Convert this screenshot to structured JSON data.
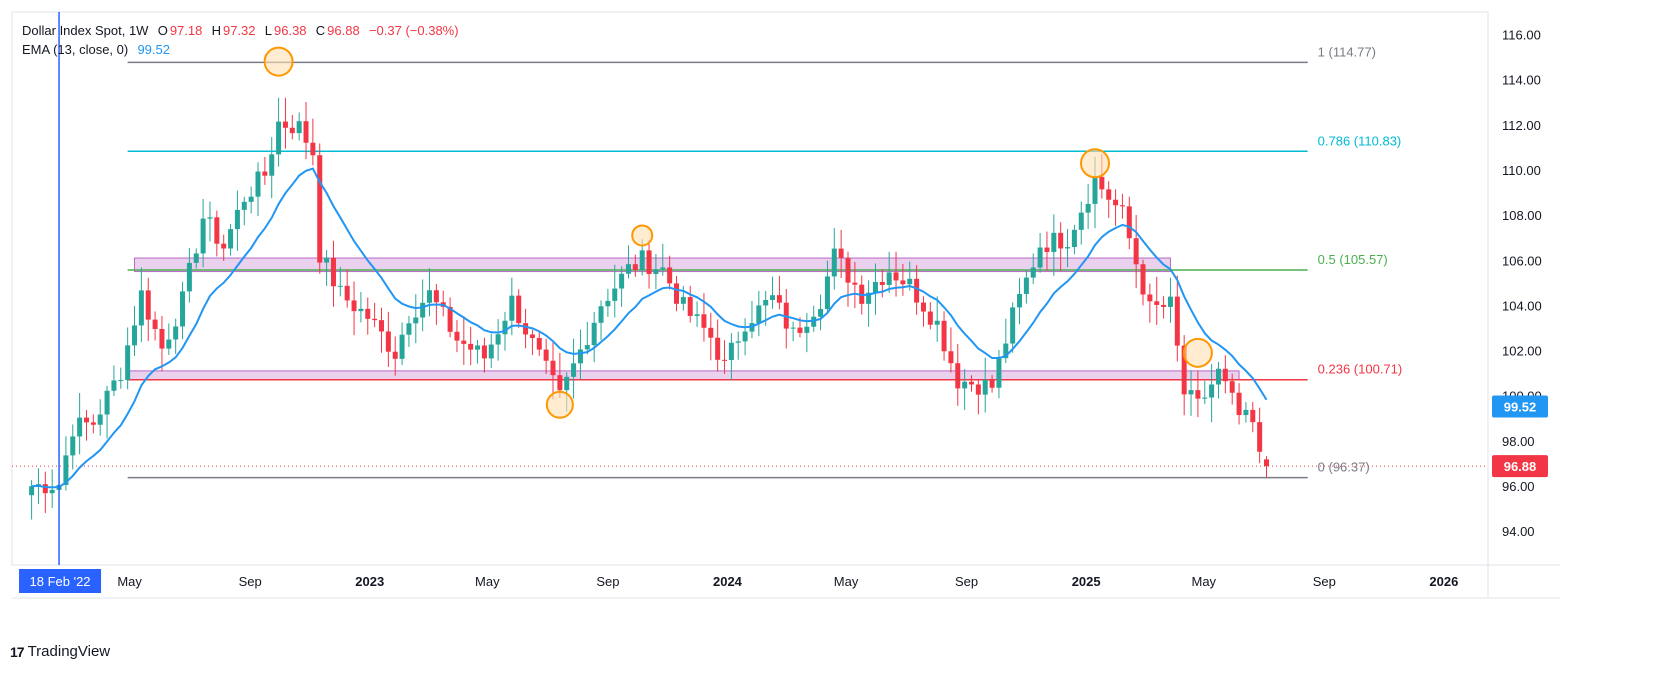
{
  "header": {
    "symbol": "Dollar Index Spot, 1W",
    "o_label": "O",
    "o_value": "97.18",
    "h_label": "H",
    "h_value": "97.32",
    "l_label": "L",
    "l_value": "96.38",
    "c_label": "C",
    "c_value": "96.88",
    "change": "−0.37 (−0.38%)",
    "ema_label": "EMA (13, close, 0)",
    "ema_value": "99.52"
  },
  "watermark": "TradingView",
  "colors": {
    "up": "#26a69a",
    "down": "#f23645",
    "ema": "#2196f3",
    "fib_1": "#787b86",
    "fib_786": "#00bcd4",
    "fib_05": "#4caf50",
    "fib_236": "#f23645",
    "fib_0": "#787b86",
    "zone_fill": "#e1bee7",
    "zone_stroke": "#ba68c8",
    "marker": "#ff9800",
    "marker_fill": "#ffe0b2",
    "last_price_bg": "#f23645",
    "ema_tag_bg": "#2196f3",
    "date_tag_bg": "#2962ff"
  },
  "chart_data": {
    "type": "candlestick",
    "title": "Dollar Index Spot, 1W",
    "ylim": [
      92.5,
      117
    ],
    "y_ticks": [
      "116.00",
      "114.00",
      "112.00",
      "110.00",
      "108.00",
      "106.00",
      "104.00",
      "102.00",
      "100.00",
      "98.00",
      "96.00",
      "94.00"
    ],
    "x_ticks": [
      {
        "label": "May",
        "date": "2022-05-01",
        "bold": false
      },
      {
        "label": "Sep",
        "date": "2022-09-01",
        "bold": false
      },
      {
        "label": "2023",
        "date": "2023-01-01",
        "bold": true
      },
      {
        "label": "May",
        "date": "2023-05-01",
        "bold": false
      },
      {
        "label": "Sep",
        "date": "2023-09-01",
        "bold": false
      },
      {
        "label": "2024",
        "date": "2024-01-01",
        "bold": true
      },
      {
        "label": "May",
        "date": "2024-05-01",
        "bold": false
      },
      {
        "label": "Sep",
        "date": "2024-09-01",
        "bold": false
      },
      {
        "label": "2025",
        "date": "2025-01-01",
        "bold": true
      },
      {
        "label": "May",
        "date": "2025-05-01",
        "bold": false
      },
      {
        "label": "Sep",
        "date": "2025-09-01",
        "bold": false
      },
      {
        "label": "2026",
        "date": "2026-01-01",
        "bold": true
      }
    ],
    "date_marker": {
      "label": "18 Feb '22",
      "date": "2022-02-18"
    },
    "fib_levels": [
      {
        "key": "fib_1",
        "label": "1 (114.77)",
        "value": 114.77
      },
      {
        "key": "fib_786",
        "label": "0.786 (110.83)",
        "value": 110.83
      },
      {
        "key": "fib_05",
        "label": "0.5 (105.57)",
        "value": 105.57
      },
      {
        "key": "fib_236",
        "label": "0.236 (100.71)",
        "value": 100.71
      },
      {
        "key": "fib_0",
        "label": "0 (96.37)",
        "value": 96.37
      }
    ],
    "fib_start_date": "2022-04-29",
    "fib_end_date": "2025-08-15",
    "zones": [
      {
        "start": "2022-05-06",
        "end": "2025-03-28",
        "top": 106.1,
        "bottom": 105.5
      },
      {
        "start": "2022-04-29",
        "end": "2025-06-06",
        "top": 101.1,
        "bottom": 100.7
      }
    ],
    "markers": [
      {
        "date": "2022-09-30",
        "value": 114.8,
        "size": "large"
      },
      {
        "date": "2023-10-06",
        "value": 107.1,
        "size": "small"
      },
      {
        "date": "2023-07-14",
        "value": 99.6,
        "size": "medium"
      },
      {
        "date": "2025-01-10",
        "value": 110.3,
        "size": "large"
      },
      {
        "date": "2025-04-25",
        "value": 101.9,
        "size": "large"
      }
    ],
    "last_price": {
      "label": "96.88",
      "value": 96.88
    },
    "ema_last": {
      "label": "99.52",
      "value": 99.52
    },
    "series_anchors": [
      {
        "date": "2022-01-21",
        "close": 96.0
      },
      {
        "date": "2022-02-18",
        "close": 96.1
      },
      {
        "date": "2022-03-04",
        "close": 98.6
      },
      {
        "date": "2022-03-25",
        "close": 98.8
      },
      {
        "date": "2022-04-22",
        "close": 101.1
      },
      {
        "date": "2022-05-13",
        "close": 104.5
      },
      {
        "date": "2022-06-03",
        "close": 102.1
      },
      {
        "date": "2022-06-24",
        "close": 104.2
      },
      {
        "date": "2022-07-15",
        "close": 107.9
      },
      {
        "date": "2022-08-05",
        "close": 106.6
      },
      {
        "date": "2022-08-26",
        "close": 108.8
      },
      {
        "date": "2022-09-16",
        "close": 109.8
      },
      {
        "date": "2022-09-30",
        "close": 112.1
      },
      {
        "date": "2022-10-21",
        "close": 111.9
      },
      {
        "date": "2022-11-04",
        "close": 110.8
      },
      {
        "date": "2022-11-11",
        "close": 106.3
      },
      {
        "date": "2022-12-02",
        "close": 104.5
      },
      {
        "date": "2022-12-30",
        "close": 103.5
      },
      {
        "date": "2023-01-27",
        "close": 101.9
      },
      {
        "date": "2023-02-10",
        "close": 103.6
      },
      {
        "date": "2023-03-03",
        "close": 104.5
      },
      {
        "date": "2023-03-31",
        "close": 102.5
      },
      {
        "date": "2023-04-28",
        "close": 101.7
      },
      {
        "date": "2023-05-26",
        "close": 104.2
      },
      {
        "date": "2023-06-16",
        "close": 102.3
      },
      {
        "date": "2023-07-14",
        "close": 99.9
      },
      {
        "date": "2023-08-04",
        "close": 102.0
      },
      {
        "date": "2023-08-25",
        "close": 104.1
      },
      {
        "date": "2023-09-22",
        "close": 105.6
      },
      {
        "date": "2023-10-06",
        "close": 106.0
      },
      {
        "date": "2023-10-27",
        "close": 105.6
      },
      {
        "date": "2023-11-17",
        "close": 103.9
      },
      {
        "date": "2023-12-15",
        "close": 102.6
      },
      {
        "date": "2023-12-29",
        "close": 101.3
      },
      {
        "date": "2024-01-19",
        "close": 103.3
      },
      {
        "date": "2024-02-16",
        "close": 104.3
      },
      {
        "date": "2024-03-08",
        "close": 102.7
      },
      {
        "date": "2024-04-05",
        "close": 104.3
      },
      {
        "date": "2024-04-19",
        "close": 106.2
      },
      {
        "date": "2024-05-17",
        "close": 104.5
      },
      {
        "date": "2024-06-14",
        "close": 105.6
      },
      {
        "date": "2024-07-05",
        "close": 104.9
      },
      {
        "date": "2024-08-02",
        "close": 103.2
      },
      {
        "date": "2024-08-23",
        "close": 100.7
      },
      {
        "date": "2024-09-27",
        "close": 100.4
      },
      {
        "date": "2024-10-18",
        "close": 103.5
      },
      {
        "date": "2024-11-15",
        "close": 106.7
      },
      {
        "date": "2024-12-13",
        "close": 107.0
      },
      {
        "date": "2025-01-10",
        "close": 109.6
      },
      {
        "date": "2025-02-07",
        "close": 108.0
      },
      {
        "date": "2025-03-07",
        "close": 103.8
      },
      {
        "date": "2025-03-28",
        "close": 104.0
      },
      {
        "date": "2025-04-11",
        "close": 100.1
      },
      {
        "date": "2025-04-25",
        "close": 99.5
      },
      {
        "date": "2025-05-16",
        "close": 101.0
      },
      {
        "date": "2025-06-06",
        "close": 99.1
      },
      {
        "date": "2025-06-20",
        "close": 98.7
      },
      {
        "date": "2025-06-27",
        "close": 97.2
      },
      {
        "date": "2025-07-04",
        "close": 96.88
      }
    ]
  }
}
